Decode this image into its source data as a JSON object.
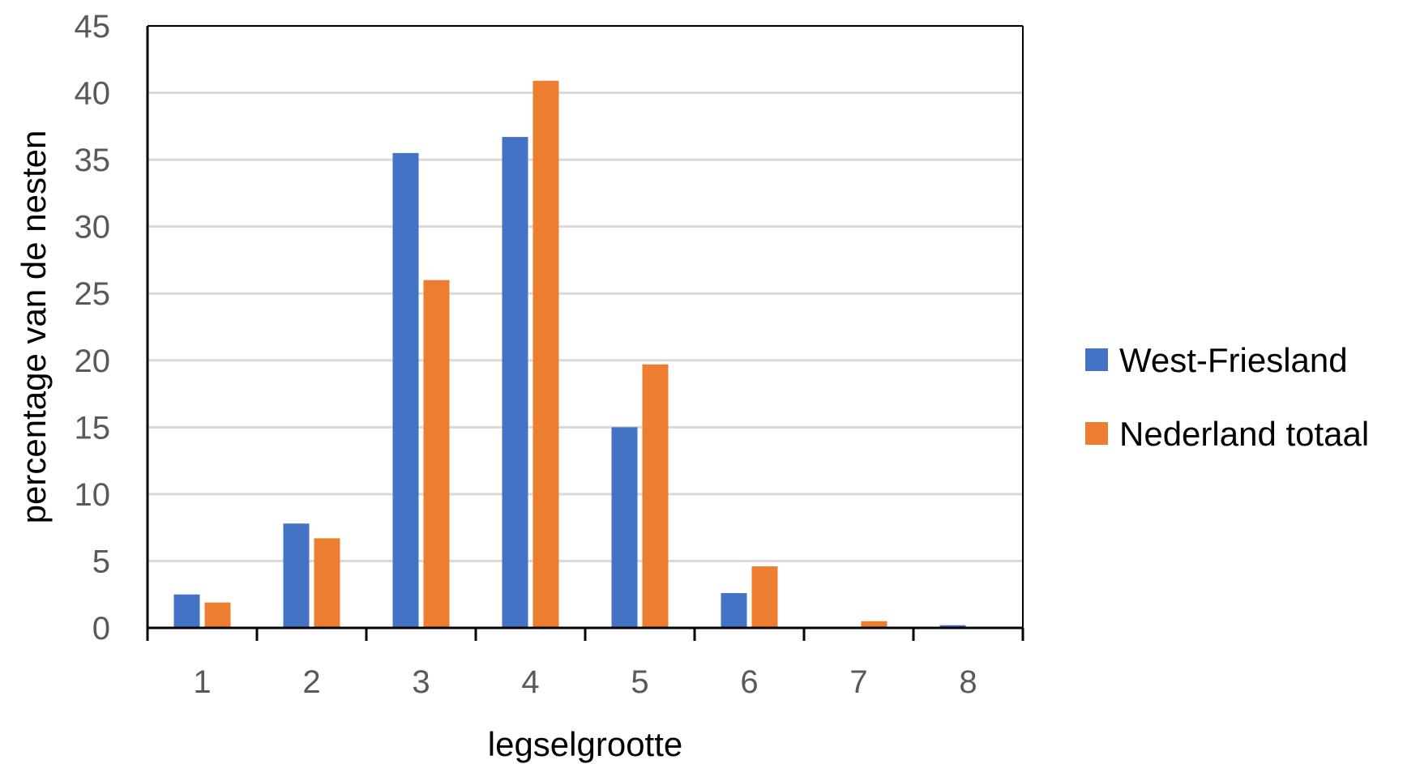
{
  "chart_data": {
    "type": "bar",
    "title": "",
    "xlabel": "legselgrootte",
    "ylabel": "percentage van de nesten",
    "categories": [
      "1",
      "2",
      "3",
      "4",
      "5",
      "6",
      "7",
      "8"
    ],
    "ylim": [
      0,
      45
    ],
    "yticks": [
      0,
      5,
      10,
      15,
      20,
      25,
      30,
      35,
      40,
      45
    ],
    "grid": true,
    "legend_position": "right",
    "series": [
      {
        "name": "West-Friesland",
        "color": "#4472C4",
        "values": [
          2.5,
          7.8,
          35.5,
          36.7,
          15.0,
          2.6,
          0.0,
          0.2
        ]
      },
      {
        "name": "Nederland totaal",
        "color": "#ED7D31",
        "values": [
          1.9,
          6.7,
          26.0,
          40.9,
          19.7,
          4.6,
          0.5,
          0.0
        ]
      }
    ]
  }
}
